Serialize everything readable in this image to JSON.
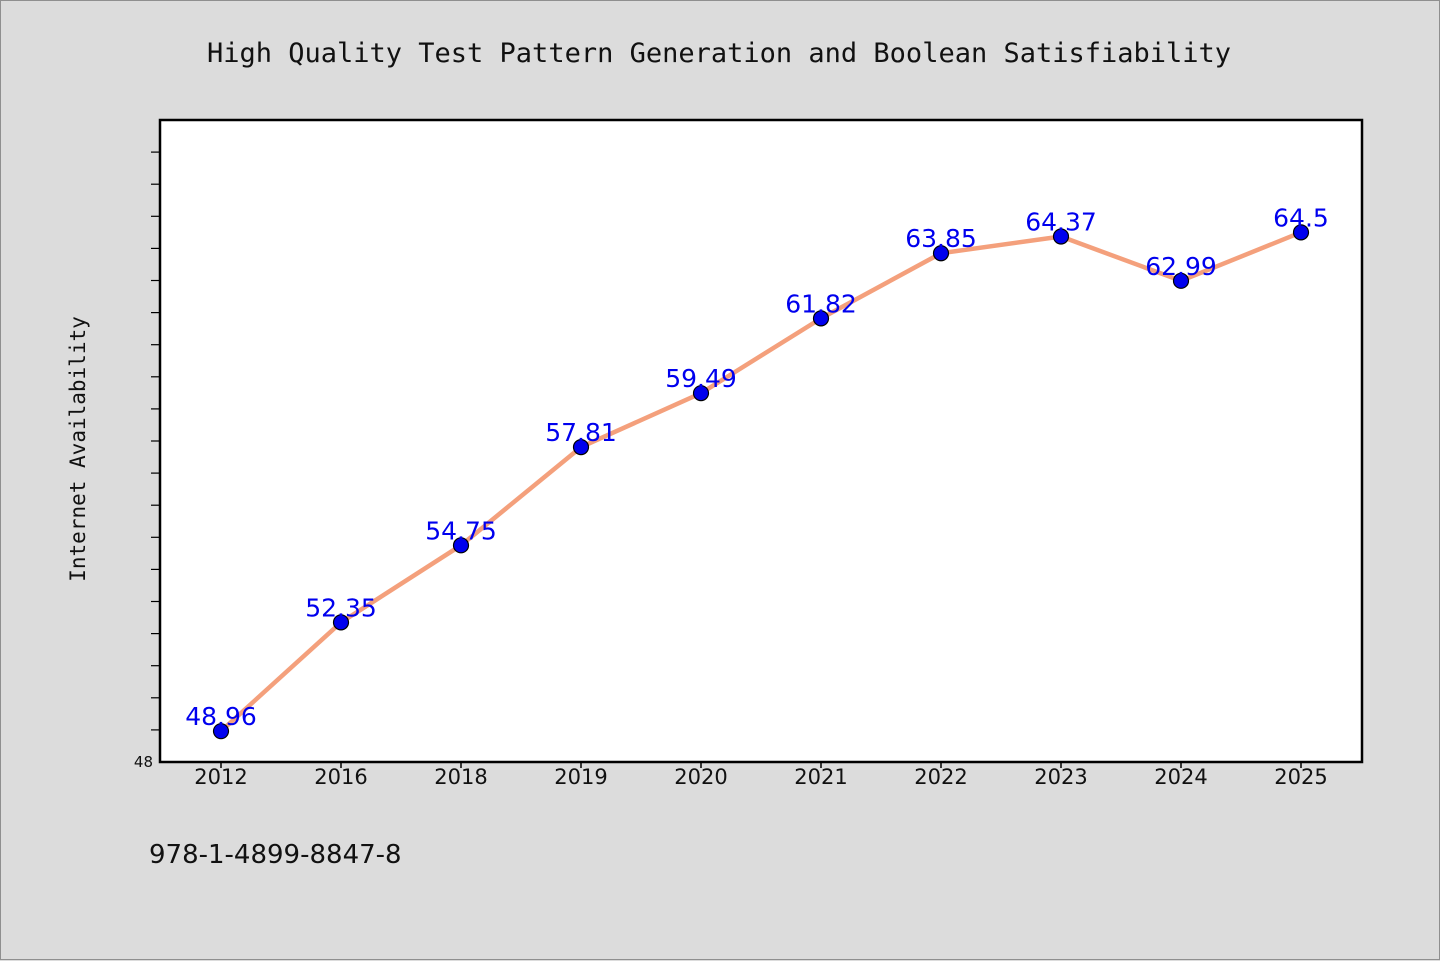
{
  "chart_data": {
    "type": "line",
    "title": "High Quality Test Pattern Generation and Boolean Satisfiability",
    "xlabel": "",
    "ylabel": "Internet Availability",
    "categories": [
      "2012",
      "2016",
      "2018",
      "2019",
      "2020",
      "2021",
      "2022",
      "2023",
      "2024",
      "2025"
    ],
    "series": [
      {
        "values": [
          48.96,
          52.35,
          54.75,
          57.81,
          59.49,
          61.82,
          63.85,
          64.37,
          62.99,
          64.5
        ]
      }
    ],
    "data_labels": [
      "48.96",
      "52.35",
      "54.75",
      "57.81",
      "59.49",
      "61.82",
      "63.85",
      "64.37",
      "62.99",
      "64.5"
    ],
    "y_tick_labels": [
      "48"
    ],
    "ylim": [
      48,
      68
    ],
    "grid": false,
    "legend": "none",
    "colors": {
      "line": "#f4a07c",
      "marker": "#0000ee",
      "label": "#0000ee",
      "background": "#dcdcdc",
      "plot_background": "#ffffff"
    }
  },
  "footnote": "978-1-4899-8847-8"
}
